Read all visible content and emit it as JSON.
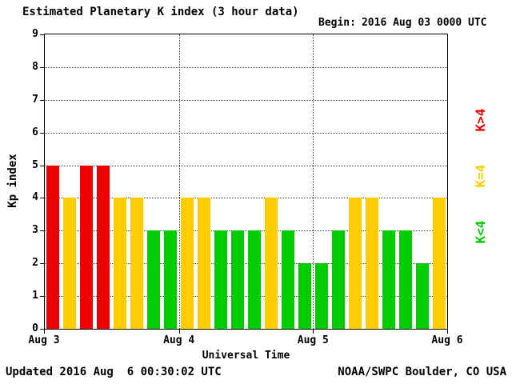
{
  "title": "Estimated Planetary K index (3 hour data)",
  "begin": {
    "label": "Begin:",
    "value": "2016 Aug 03 0000 UTC"
  },
  "footer": {
    "updated": "Updated 2016 Aug  6 00:30:02 UTC",
    "credit": "NOAA/SWPC Boulder, CO USA"
  },
  "legend": [
    {
      "label": "K>4",
      "color": "#ee0000"
    },
    {
      "label": "K=4",
      "color": "#ffcc00"
    },
    {
      "label": "K<4",
      "color": "#00cc00"
    }
  ],
  "chart_data": {
    "type": "bar",
    "title": "Estimated Planetary K index (3 hour data)",
    "xlabel": "Universal Time",
    "ylabel": "Kp index",
    "ylim": [
      0,
      9
    ],
    "yticks": [
      0,
      1,
      2,
      3,
      4,
      5,
      6,
      7,
      8,
      9
    ],
    "xticklabels": [
      "Aug 3",
      "Aug 4",
      "Aug 5",
      "Aug 6"
    ],
    "bars_per_day": 8,
    "grid": "dotted",
    "legend_position": "right",
    "values": [
      5,
      4,
      5,
      5,
      4,
      4,
      3,
      3,
      4,
      4,
      3,
      3,
      3,
      4,
      3,
      2,
      2,
      3,
      4,
      4,
      3,
      3,
      2,
      4
    ],
    "colors": {
      "gt4": "#ee0000",
      "eq4": "#ffcc00",
      "lt4": "#00cc00"
    }
  }
}
